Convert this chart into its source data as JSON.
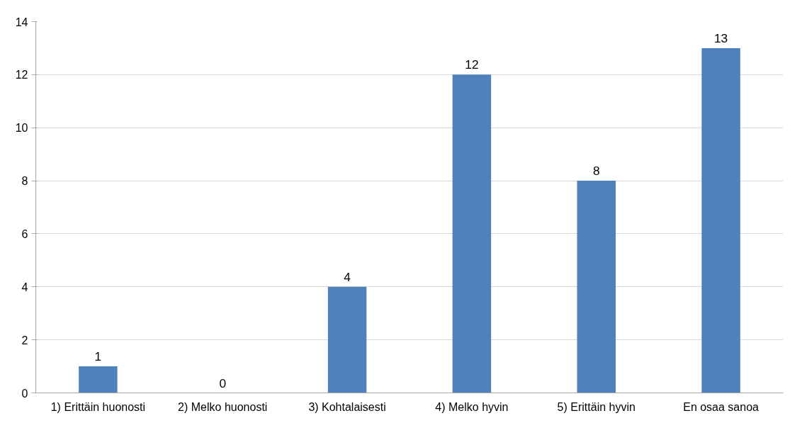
{
  "chart_data": {
    "type": "bar",
    "categories": [
      "1) Erittäin huonosti",
      "2) Melko huonosti",
      "3) Kohtalaisesti",
      "4) Melko hyvin",
      "5) Erittäin hyvin",
      "En osaa sanoa"
    ],
    "values": [
      1,
      0,
      4,
      12,
      8,
      13
    ],
    "color": "#4f81bd",
    "ylim": [
      0,
      14
    ],
    "yticks": [
      0,
      2,
      4,
      6,
      8,
      10,
      12,
      14
    ],
    "grid": "y",
    "data_labels": true
  }
}
